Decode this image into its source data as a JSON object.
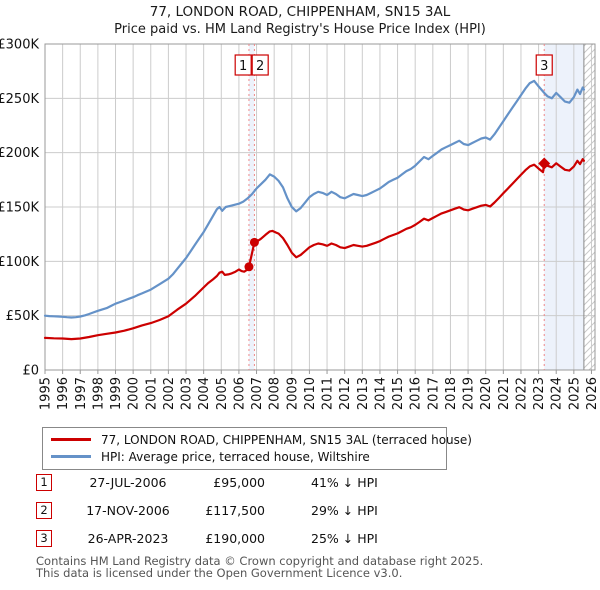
{
  "title": "77, LONDON ROAD, CHIPPENHAM, SN15 3AL",
  "subtitle": "Price paid vs. HM Land Registry's House Price Index (HPI)",
  "legend": {
    "items": [
      {
        "label": "77, LONDON ROAD, CHIPPENHAM, SN15 3AL (terraced house)"
      },
      {
        "label": "HPI: Average price, terraced house, Wiltshire"
      }
    ]
  },
  "transactions": [
    {
      "num": "1",
      "date": "27-JUL-2006",
      "price": "£95,000",
      "hpi_delta": "41% ↓ HPI"
    },
    {
      "num": "2",
      "date": "17-NOV-2006",
      "price": "£117,500",
      "hpi_delta": "29% ↓ HPI"
    },
    {
      "num": "3",
      "date": "26-APR-2023",
      "price": "£190,000",
      "hpi_delta": "25% ↓ HPI"
    }
  ],
  "footer": {
    "line1": "Contains HM Land Registry data © Crown copyright and database right 2025.",
    "line2": "This data is licensed under the Open Government Licence v3.0."
  },
  "chart_data": {
    "type": "line",
    "units": "GBP thousands",
    "ylim": [
      0,
      300
    ],
    "xlim": [
      1995,
      2026.2
    ],
    "grid": true,
    "legend_position": "below",
    "y_ticks": [
      {
        "v": 0,
        "label": "£0"
      },
      {
        "v": 50,
        "label": "£50K"
      },
      {
        "v": 100,
        "label": "£100K"
      },
      {
        "v": 150,
        "label": "£150K"
      },
      {
        "v": 200,
        "label": "£200K"
      },
      {
        "v": 250,
        "label": "£250K"
      },
      {
        "v": 300,
        "label": "£300K"
      }
    ],
    "x_ticks": [
      1995,
      1996,
      1997,
      1998,
      1999,
      2000,
      2001,
      2002,
      2003,
      2004,
      2005,
      2006,
      2007,
      2008,
      2009,
      2010,
      2011,
      2012,
      2013,
      2014,
      2015,
      2016,
      2017,
      2018,
      2019,
      2020,
      2021,
      2022,
      2023,
      2024,
      2025,
      2026
    ],
    "series": [
      {
        "name": "77, LONDON ROAD, CHIPPENHAM, SN15 3AL (terraced house)",
        "color": "#cc0000",
        "points": [
          [
            1995,
            29.5
          ],
          [
            1995.5,
            29.2
          ],
          [
            1996,
            29
          ],
          [
            1996.5,
            28.4
          ],
          [
            1997,
            29
          ],
          [
            1997.5,
            30.4
          ],
          [
            1998,
            32
          ],
          [
            1998.5,
            33.3
          ],
          [
            1999,
            34.5
          ],
          [
            1999.5,
            36.2
          ],
          [
            2000,
            38.4
          ],
          [
            2000.5,
            41
          ],
          [
            2001,
            43.2
          ],
          [
            2001.5,
            46
          ],
          [
            2002,
            49.5
          ],
          [
            2002.5,
            55.5
          ],
          [
            2003,
            61
          ],
          [
            2003.5,
            68
          ],
          [
            2004,
            76
          ],
          [
            2004.25,
            80
          ],
          [
            2004.5,
            83
          ],
          [
            2004.75,
            86.5
          ],
          [
            2004.9,
            89.5
          ],
          [
            2005.05,
            90.5
          ],
          [
            2005.2,
            87.5
          ],
          [
            2005.4,
            88
          ],
          [
            2005.6,
            89
          ],
          [
            2005.8,
            90.5
          ],
          [
            2006,
            92.5
          ],
          [
            2006.15,
            91
          ],
          [
            2006.3,
            90.5
          ],
          [
            2006.45,
            92
          ],
          [
            2006.57,
            95
          ],
          [
            2006.88,
            117.5
          ],
          [
            2007,
            118
          ],
          [
            2007.25,
            120.7
          ],
          [
            2007.5,
            124.3
          ],
          [
            2007.75,
            127.5
          ],
          [
            2007.9,
            128
          ],
          [
            2008.1,
            126.5
          ],
          [
            2008.25,
            125.5
          ],
          [
            2008.5,
            121.4
          ],
          [
            2008.75,
            115
          ],
          [
            2009,
            107.9
          ],
          [
            2009.25,
            103.7
          ],
          [
            2009.5,
            105.8
          ],
          [
            2009.75,
            109.3
          ],
          [
            2010,
            112.9
          ],
          [
            2010.25,
            115
          ],
          [
            2010.5,
            116.4
          ],
          [
            2010.75,
            115.7
          ],
          [
            2011,
            114.3
          ],
          [
            2011.25,
            116.4
          ],
          [
            2011.5,
            115
          ],
          [
            2011.75,
            112.9
          ],
          [
            2012,
            112.2
          ],
          [
            2012.25,
            113.6
          ],
          [
            2012.5,
            115
          ],
          [
            2012.75,
            114.3
          ],
          [
            2013,
            113.6
          ],
          [
            2013.25,
            114.3
          ],
          [
            2013.5,
            115.7
          ],
          [
            2013.75,
            117.1
          ],
          [
            2014,
            118.6
          ],
          [
            2014.25,
            120.7
          ],
          [
            2014.5,
            122.8
          ],
          [
            2014.75,
            124.2
          ],
          [
            2015,
            125.7
          ],
          [
            2015.25,
            127.8
          ],
          [
            2015.5,
            129.9
          ],
          [
            2015.75,
            131.3
          ],
          [
            2016,
            133.5
          ],
          [
            2016.25,
            136.3
          ],
          [
            2016.5,
            139.2
          ],
          [
            2016.75,
            137.7
          ],
          [
            2017,
            139.9
          ],
          [
            2017.25,
            142
          ],
          [
            2017.5,
            144.1
          ],
          [
            2017.75,
            145.5
          ],
          [
            2018,
            147
          ],
          [
            2018.25,
            148.4
          ],
          [
            2018.5,
            149.8
          ],
          [
            2018.75,
            147.7
          ],
          [
            2019,
            147
          ],
          [
            2019.25,
            148.4
          ],
          [
            2019.5,
            149.8
          ],
          [
            2019.75,
            151.2
          ],
          [
            2020,
            151.9
          ],
          [
            2020.25,
            150.5
          ],
          [
            2020.5,
            154.1
          ],
          [
            2020.75,
            158.3
          ],
          [
            2021,
            162.6
          ],
          [
            2021.25,
            166.8
          ],
          [
            2021.5,
            171.1
          ],
          [
            2021.75,
            175.4
          ],
          [
            2022,
            179.6
          ],
          [
            2022.25,
            183.9
          ],
          [
            2022.5,
            187.4
          ],
          [
            2022.75,
            188.9
          ],
          [
            2023,
            185.3
          ],
          [
            2023.25,
            182
          ],
          [
            2023.32,
            190
          ],
          [
            2023.5,
            188
          ],
          [
            2023.75,
            186.5
          ],
          [
            2024,
            190.2
          ],
          [
            2024.25,
            187.2
          ],
          [
            2024.5,
            184.2
          ],
          [
            2024.75,
            183.5
          ],
          [
            2025,
            187.2
          ],
          [
            2025.2,
            192.5
          ],
          [
            2025.35,
            189.5
          ],
          [
            2025.5,
            194
          ],
          [
            2025.57,
            192.5
          ]
        ]
      },
      {
        "name": "HPI: Average price, terraced house, Wiltshire",
        "color": "#6592c8",
        "points": [
          [
            1995,
            50
          ],
          [
            1995.25,
            49.6
          ],
          [
            1995.5,
            49.4
          ],
          [
            1995.75,
            49.2
          ],
          [
            1996,
            49
          ],
          [
            1996.25,
            48.6
          ],
          [
            1996.5,
            48.3
          ],
          [
            1996.75,
            48.6
          ],
          [
            1997,
            49.2
          ],
          [
            1997.25,
            50.2
          ],
          [
            1997.5,
            51.5
          ],
          [
            1997.75,
            53
          ],
          [
            1998,
            54.5
          ],
          [
            1998.25,
            55.8
          ],
          [
            1998.5,
            57
          ],
          [
            1998.75,
            59
          ],
          [
            1999,
            61
          ],
          [
            1999.25,
            62.5
          ],
          [
            1999.5,
            64
          ],
          [
            1999.75,
            65.5
          ],
          [
            2000,
            67
          ],
          [
            2000.25,
            68.8
          ],
          [
            2000.5,
            70.5
          ],
          [
            2001,
            74
          ],
          [
            2001.5,
            79
          ],
          [
            2002,
            84
          ],
          [
            2002.25,
            88
          ],
          [
            2002.5,
            93
          ],
          [
            2002.75,
            98
          ],
          [
            2003,
            103
          ],
          [
            2003.25,
            109
          ],
          [
            2003.5,
            115
          ],
          [
            2003.75,
            121
          ],
          [
            2004,
            127
          ],
          [
            2004.25,
            134
          ],
          [
            2004.5,
            141
          ],
          [
            2004.75,
            148
          ],
          [
            2004.9,
            150
          ],
          [
            2005.05,
            146.5
          ],
          [
            2005.25,
            150
          ],
          [
            2005.5,
            151
          ],
          [
            2005.75,
            152
          ],
          [
            2006,
            153
          ],
          [
            2006.25,
            155
          ],
          [
            2006.5,
            158
          ],
          [
            2006.75,
            162
          ],
          [
            2007,
            167
          ],
          [
            2007.25,
            171
          ],
          [
            2007.5,
            175
          ],
          [
            2007.75,
            180
          ],
          [
            2008,
            178
          ],
          [
            2008.25,
            174
          ],
          [
            2008.5,
            168
          ],
          [
            2008.75,
            158
          ],
          [
            2009,
            150
          ],
          [
            2009.25,
            146
          ],
          [
            2009.5,
            149
          ],
          [
            2009.75,
            154
          ],
          [
            2010,
            159
          ],
          [
            2010.25,
            162
          ],
          [
            2010.5,
            164
          ],
          [
            2010.75,
            163
          ],
          [
            2011,
            161
          ],
          [
            2011.25,
            164
          ],
          [
            2011.5,
            162
          ],
          [
            2011.75,
            159
          ],
          [
            2012,
            158
          ],
          [
            2012.25,
            160
          ],
          [
            2012.5,
            162
          ],
          [
            2012.75,
            161
          ],
          [
            2013,
            160
          ],
          [
            2013.25,
            161
          ],
          [
            2013.5,
            163
          ],
          [
            2013.75,
            165
          ],
          [
            2014,
            167
          ],
          [
            2014.25,
            170
          ],
          [
            2014.5,
            173
          ],
          [
            2014.75,
            175
          ],
          [
            2015,
            177
          ],
          [
            2015.25,
            180
          ],
          [
            2015.5,
            183
          ],
          [
            2015.75,
            185
          ],
          [
            2016,
            188
          ],
          [
            2016.25,
            192
          ],
          [
            2016.5,
            196
          ],
          [
            2016.75,
            194
          ],
          [
            2017,
            197
          ],
          [
            2017.25,
            200
          ],
          [
            2017.5,
            203
          ],
          [
            2017.75,
            205
          ],
          [
            2018,
            207
          ],
          [
            2018.25,
            209
          ],
          [
            2018.5,
            211
          ],
          [
            2018.75,
            208
          ],
          [
            2019,
            207
          ],
          [
            2019.25,
            209
          ],
          [
            2019.5,
            211
          ],
          [
            2019.75,
            213
          ],
          [
            2020,
            214
          ],
          [
            2020.25,
            212
          ],
          [
            2020.5,
            217
          ],
          [
            2020.75,
            223
          ],
          [
            2021,
            229
          ],
          [
            2021.25,
            235
          ],
          [
            2021.5,
            241
          ],
          [
            2021.75,
            247
          ],
          [
            2022,
            253
          ],
          [
            2022.25,
            259
          ],
          [
            2022.5,
            264
          ],
          [
            2022.75,
            266
          ],
          [
            2023,
            261
          ],
          [
            2023.32,
            255
          ],
          [
            2023.5,
            252
          ],
          [
            2023.75,
            250
          ],
          [
            2024,
            255
          ],
          [
            2024.25,
            251
          ],
          [
            2024.5,
            247
          ],
          [
            2024.75,
            246
          ],
          [
            2025,
            251
          ],
          [
            2025.2,
            258
          ],
          [
            2025.35,
            254
          ],
          [
            2025.5,
            260
          ],
          [
            2025.57,
            258
          ]
        ]
      }
    ],
    "sale_markers": [
      {
        "label": "1",
        "x": 2006.57,
        "y": 95,
        "shape": "circle"
      },
      {
        "label": "2",
        "x": 2006.88,
        "y": 117.5,
        "shape": "circle"
      },
      {
        "label": "3",
        "x": 2023.32,
        "y": 190,
        "shape": "diamond"
      }
    ],
    "shaded_regions": [
      {
        "from": 2006.57,
        "to": 2006.88
      },
      {
        "from": 2023.32,
        "to": 2025.57
      }
    ],
    "hatched_region": {
      "from": 2025.57,
      "to": 2026.2
    },
    "colors": {
      "red": "#cc0000",
      "blue": "#6592c8",
      "marker_line": "#ee8888",
      "shade": "#edf2fb",
      "grid": "#cccccc",
      "border": "#999999",
      "hatch": "#c9c9c9",
      "tick_text": "#111111"
    }
  }
}
